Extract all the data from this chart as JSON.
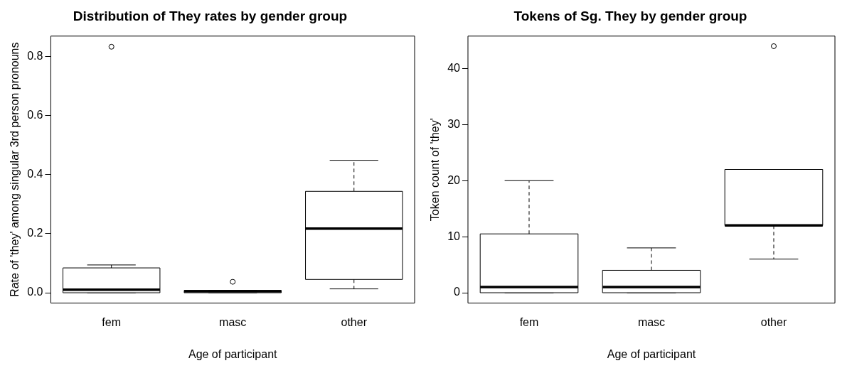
{
  "chart_data": [
    {
      "type": "box",
      "title": "Distribution of They rates by gender group",
      "xlabel": "Age of participant",
      "ylabel": "Rate of 'they' among singular 3rd person pronouns",
      "categories": [
        "fem",
        "masc",
        "other"
      ],
      "boxes": [
        {
          "low": 0,
          "q1": 0,
          "median": 0.01,
          "q3": 0.084,
          "high": 0.094,
          "outliers": [
            0.832
          ]
        },
        {
          "low": 0,
          "q1": 0,
          "median": 0.005,
          "q3": 0.008,
          "high": 0.008,
          "outliers": [
            0.037
          ]
        },
        {
          "low": 0.013,
          "q1": 0.045,
          "median": 0.217,
          "q3": 0.343,
          "high": 0.448
        }
      ],
      "ylim": [
        -0.035,
        0.868
      ],
      "yticks": [
        {
          "value": 0,
          "label": "0.0"
        },
        {
          "value": 0.2,
          "label": "0.2"
        },
        {
          "value": 0.4,
          "label": "0.4"
        },
        {
          "value": 0.6,
          "label": "0.6"
        },
        {
          "value": 0.8,
          "label": "0.8"
        }
      ],
      "grid": false
    },
    {
      "type": "box",
      "title": "Tokens of Sg. They by gender group",
      "xlabel": "Age of participant",
      "ylabel": "Token count of 'they'",
      "categories": [
        "fem",
        "masc",
        "other"
      ],
      "boxes": [
        {
          "low": 0,
          "q1": 0,
          "median": 1,
          "q3": 10.5,
          "high": 20
        },
        {
          "low": 0,
          "q1": 0,
          "median": 1,
          "q3": 4,
          "high": 8
        },
        {
          "low": 6,
          "q1": 12,
          "median": 12,
          "q3": 22,
          "high": 22,
          "outliers": [
            44
          ]
        }
      ],
      "ylim": [
        -1.85,
        45.8
      ],
      "yticks": [
        0,
        10,
        20,
        30,
        40
      ],
      "grid": false
    }
  ]
}
